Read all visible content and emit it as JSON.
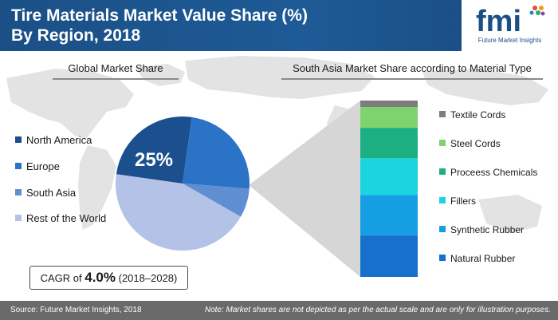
{
  "header": {
    "title_line1": "Tire Materials Market Value Share (%)",
    "title_line2": "By Region, 2018"
  },
  "logo": {
    "letters": "fmi",
    "caption": "Future Market Insights"
  },
  "colors": {
    "header": "#1e5a96",
    "north_america": "#1c4f8d",
    "europe": "#2a73c7",
    "south_asia": "#5f8fd2",
    "rest_of_world": "#b3c2e6",
    "textile_cords": "#7d7d7d",
    "steel_cords": "#7fd36e",
    "proceess_chemicals": "#1caf82",
    "fillers": "#1bd3e1",
    "synthetic_rubber": "#159fe2",
    "natural_rubber": "#1770cc"
  },
  "chart_data": [
    {
      "type": "pie",
      "title": "Global Market Share",
      "categories": [
        "North America",
        "Europe",
        "South Asia",
        "Rest of the World"
      ],
      "values": [
        25,
        24,
        7,
        44
      ],
      "colors": [
        "#1c4f8d",
        "#2a73c7",
        "#5f8fd2",
        "#b3c2e6"
      ],
      "data_labels": [
        "25%",
        "",
        "",
        ""
      ],
      "legend_position": "left"
    },
    {
      "type": "bar",
      "stacked": true,
      "title": "South Asia Market Share according to Material Type",
      "categories": [
        "Natural Rubber",
        "Synthetic Rubber",
        "Fillers",
        "Proceess Chemicals",
        "Steel Cords",
        "Textile Cords"
      ],
      "values": [
        26,
        25,
        23,
        19,
        13,
        4
      ],
      "colors": [
        "#1770cc",
        "#159fe2",
        "#1bd3e1",
        "#1caf82",
        "#7fd36e",
        "#7d7d7d"
      ],
      "legend_position": "right"
    }
  ],
  "cagr": {
    "prefix": "CAGR of ",
    "value": "4.0%",
    "period": "(2018–2028)"
  },
  "footer": {
    "source": "Source: Future Market Insights, 2018",
    "note": "Note: Market shares are not depicted as per the actual scale and are only for illustration purposes."
  }
}
